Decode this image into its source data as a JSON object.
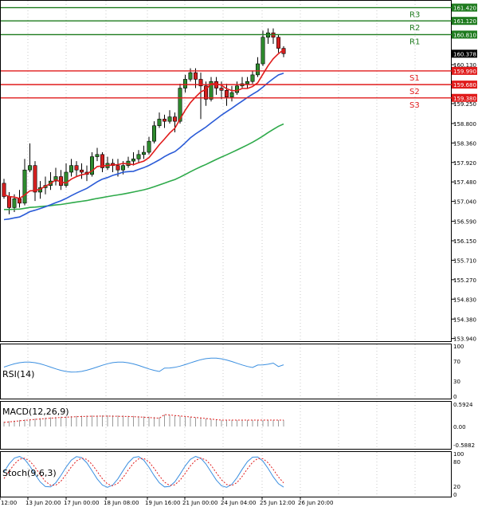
{
  "chart_data": {
    "type": "candlestick",
    "price_axis": {
      "ticks": [
        "161.120",
        "160.810",
        "160.130",
        "159.250",
        "158.800",
        "158.360",
        "157.920",
        "157.480",
        "157.040",
        "156.590",
        "156.150",
        "155.710",
        "155.270",
        "154.830",
        "154.380",
        "153.940"
      ],
      "current": "160.378"
    },
    "levels": [
      {
        "name": "R3",
        "value": 161.42,
        "label": "161.420",
        "color": "#1e7b1e"
      },
      {
        "name": "R2",
        "value": 161.12,
        "label": "161.120",
        "color": "#1e7b1e"
      },
      {
        "name": "R1",
        "value": 160.81,
        "label": "160.810",
        "color": "#1e7b1e"
      },
      {
        "name": "S1",
        "value": 159.99,
        "label": "159.990",
        "color": "#e01b1b"
      },
      {
        "name": "S2",
        "value": 159.68,
        "label": "159.680",
        "color": "#e01b1b"
      },
      {
        "name": "S3",
        "value": 159.38,
        "label": "159.380",
        "color": "#e01b1b"
      }
    ],
    "x_labels": [
      "12:00",
      "13 Jun 20:00",
      "17 Jun 00:00",
      "18 Jun 08:00",
      "19 Jun 16:00",
      "21 Jun 00:00",
      "24 Jun 04:00",
      "25 Jun 12:00",
      "26 Jun 20:00"
    ],
    "candles": [
      [
        157.45,
        157.15,
        157.55,
        157.1
      ],
      [
        157.15,
        156.9,
        157.25,
        156.75
      ],
      [
        156.9,
        157.1,
        157.2,
        156.8
      ],
      [
        157.1,
        157.0,
        157.3,
        156.9
      ],
      [
        157.0,
        157.75,
        158.0,
        156.95
      ],
      [
        157.75,
        157.85,
        158.35,
        157.7
      ],
      [
        157.85,
        157.25,
        157.95,
        157.05
      ],
      [
        157.25,
        157.35,
        157.5,
        157.1
      ],
      [
        157.35,
        157.4,
        157.6,
        157.2
      ],
      [
        157.4,
        157.5,
        157.7,
        157.3
      ],
      [
        157.5,
        157.6,
        157.8,
        157.4
      ],
      [
        157.6,
        157.4,
        157.75,
        157.3
      ],
      [
        157.4,
        157.7,
        157.9,
        157.35
      ],
      [
        157.7,
        157.85,
        158.0,
        157.6
      ],
      [
        157.85,
        157.75,
        157.95,
        157.6
      ],
      [
        157.75,
        157.7,
        157.9,
        157.55
      ],
      [
        157.7,
        157.65,
        157.85,
        157.5
      ],
      [
        157.65,
        158.05,
        158.15,
        157.6
      ],
      [
        158.05,
        158.1,
        158.25,
        157.95
      ],
      [
        158.1,
        157.8,
        158.15,
        157.7
      ],
      [
        157.8,
        157.9,
        158.05,
        157.75
      ],
      [
        157.9,
        157.85,
        158.0,
        157.7
      ],
      [
        157.85,
        157.75,
        158.0,
        157.6
      ],
      [
        157.75,
        157.85,
        157.95,
        157.65
      ],
      [
        157.85,
        157.95,
        158.05,
        157.8
      ],
      [
        157.95,
        158.0,
        158.15,
        157.85
      ],
      [
        158.0,
        158.1,
        158.2,
        157.9
      ],
      [
        158.1,
        158.15,
        158.3,
        158.0
      ],
      [
        158.15,
        158.4,
        158.5,
        158.1
      ],
      [
        158.4,
        158.75,
        158.85,
        158.35
      ],
      [
        158.75,
        158.9,
        159.05,
        158.7
      ],
      [
        158.9,
        158.85,
        159.0,
        158.7
      ],
      [
        158.85,
        158.95,
        159.1,
        158.8
      ],
      [
        158.95,
        158.85,
        159.05,
        158.6
      ],
      [
        158.85,
        159.6,
        159.7,
        158.8
      ],
      [
        159.6,
        159.8,
        159.9,
        159.5
      ],
      [
        159.8,
        159.95,
        160.05,
        159.75
      ],
      [
        159.95,
        159.8,
        160.05,
        159.6
      ],
      [
        159.8,
        159.65,
        159.95,
        158.9
      ],
      [
        159.65,
        159.35,
        159.75,
        159.2
      ],
      [
        159.35,
        159.75,
        159.85,
        159.3
      ],
      [
        159.75,
        159.6,
        159.85,
        159.45
      ],
      [
        159.6,
        159.55,
        159.75,
        159.35
      ],
      [
        159.55,
        159.4,
        159.7,
        159.2
      ],
      [
        159.4,
        159.5,
        159.65,
        159.3
      ],
      [
        159.5,
        159.65,
        159.75,
        159.45
      ],
      [
        159.65,
        159.7,
        159.85,
        159.6
      ],
      [
        159.7,
        159.75,
        159.85,
        159.6
      ],
      [
        159.75,
        159.9,
        160.0,
        159.7
      ],
      [
        159.9,
        160.15,
        160.3,
        159.85
      ],
      [
        160.15,
        160.75,
        160.9,
        160.1
      ],
      [
        160.75,
        160.85,
        160.95,
        160.6
      ],
      [
        160.85,
        160.75,
        160.95,
        160.6
      ],
      [
        160.75,
        160.5,
        160.8,
        160.4
      ],
      [
        160.5,
        160.38,
        160.55,
        160.3
      ]
    ],
    "indicators": [
      {
        "name": "RSI(14)",
        "scale": [
          "100",
          "70",
          "30",
          "0"
        ]
      },
      {
        "name": "MACD(12,26,9)",
        "scale": [
          "0.5924",
          "0.00",
          "-0.5882"
        ]
      },
      {
        "name": "Stoch(9,6,3)",
        "scale": [
          "100",
          "80",
          "20",
          "0"
        ]
      }
    ],
    "colors": {
      "bull": "#2e8b2e",
      "bear": "#d42020",
      "ma_fast": "#e01b1b",
      "ma_mid": "#2a5bd7",
      "ma_slow": "#2eaa4a",
      "rsi": "#3b8fe0",
      "macd_signal": "#e01b1b"
    }
  }
}
